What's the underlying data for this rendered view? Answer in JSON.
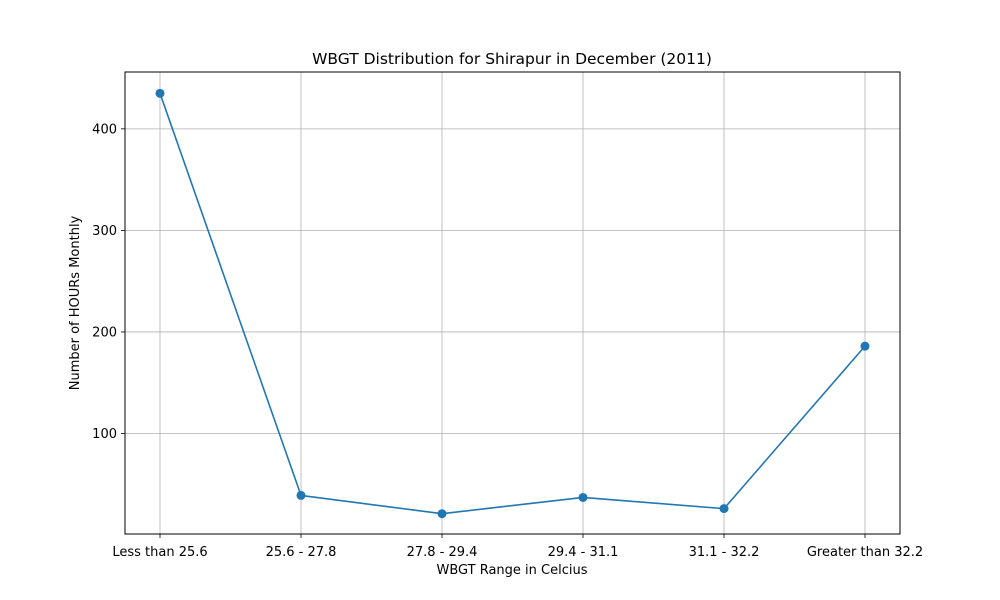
{
  "chart_data": {
    "type": "line",
    "title": "WBGT Distribution for Shirapur in December (2011)",
    "xlabel": "WBGT Range in Celcius",
    "ylabel": "Number of HOURs Monthly",
    "categories": [
      "Less than 25.6",
      "25.6 - 27.8",
      "27.8 - 29.4",
      "29.4 - 31.1",
      "31.1 - 32.2",
      "Greater than 32.2"
    ],
    "series": [
      {
        "values": [
          435,
          39,
          21,
          37,
          26,
          186
        ],
        "color": "#1f77b4",
        "marker": "circle"
      }
    ],
    "ylim": [
      1,
      456
    ],
    "yticks": [
      100,
      200,
      300,
      400
    ],
    "ytick_labels": [
      "100",
      "200",
      "300",
      "400"
    ],
    "grid": true
  }
}
